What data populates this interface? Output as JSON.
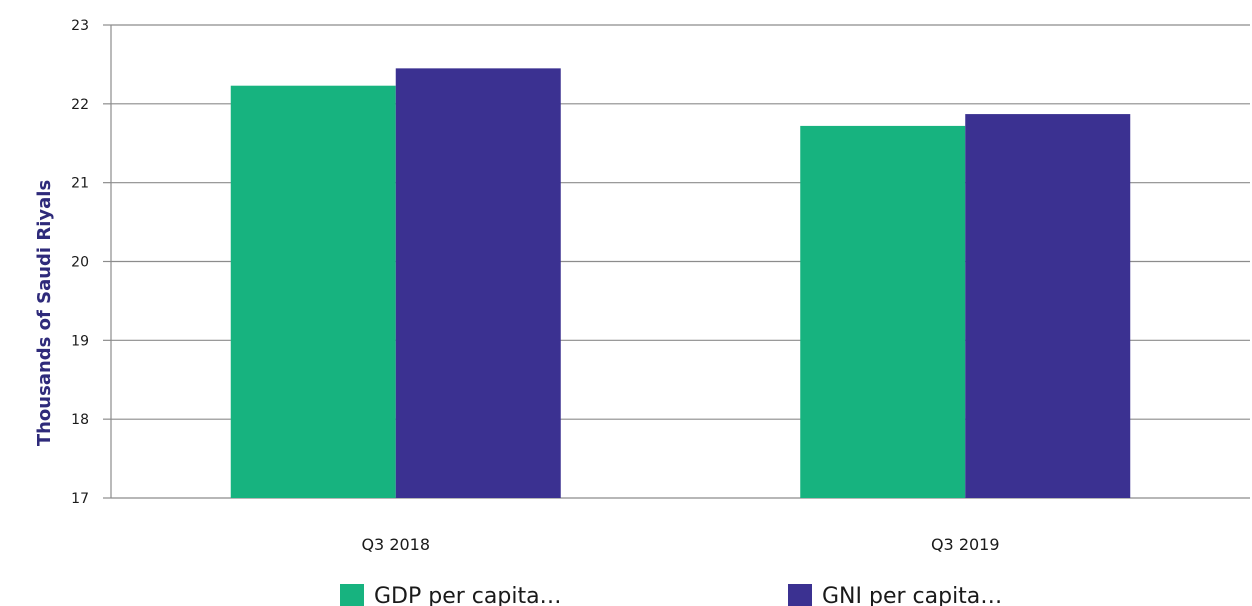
{
  "chart_data": {
    "type": "bar",
    "categories": [
      "Q3 2018",
      "Q3 2019"
    ],
    "series": [
      {
        "name": "GDP per capita…",
        "values": [
          22.23,
          21.72
        ],
        "color": "#17b37f"
      },
      {
        "name": "GNI per capita…",
        "values": [
          22.45,
          21.87
        ],
        "color": "#3b3191"
      }
    ],
    "ylabel": "Thousands of Saudi Riyals",
    "ylabel_color": "#2e2a7a",
    "ylim": [
      17,
      23
    ],
    "yticks": [
      17,
      18,
      19,
      20,
      21,
      22,
      23
    ],
    "grid": true,
    "legend_position": "bottom"
  }
}
